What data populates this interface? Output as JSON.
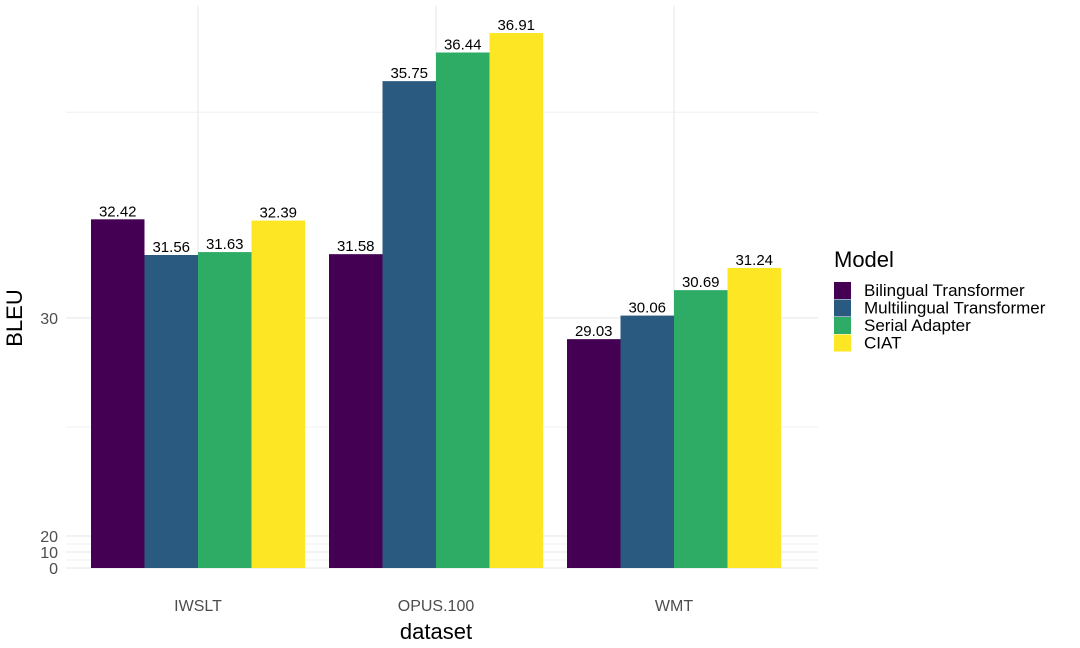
{
  "chart_data": {
    "type": "bar",
    "xlabel": "dataset",
    "ylabel": "BLEU",
    "categories": [
      "IWSLT",
      "OPUS.100",
      "WMT"
    ],
    "series": [
      {
        "name": "Bilingual Transformer",
        "color": "#440154",
        "values": [
          32.42,
          31.58,
          29.03
        ]
      },
      {
        "name": "Multilingual Transformer",
        "color": "#2b5a80",
        "values": [
          31.56,
          35.75,
          30.06
        ]
      },
      {
        "name": "Serial Adapter",
        "color": "#2eab65",
        "values": [
          31.63,
          36.44,
          30.69
        ]
      },
      {
        "name": "CIAT",
        "color": "#fde725",
        "values": [
          32.39,
          36.91,
          31.24
        ]
      }
    ],
    "value_labels": [
      [
        "32.42",
        "31.58",
        "29.03"
      ],
      [
        "31.56",
        "35.75",
        "30.06"
      ],
      [
        "31.63",
        "36.44",
        "30.69"
      ],
      [
        "32.39",
        "36.91",
        "31.24"
      ]
    ],
    "y_axis": {
      "scale": "sqrt-like (compressed near zero)",
      "ticks": [
        0,
        10,
        20,
        30
      ],
      "tick_labels": [
        "0",
        "10",
        "20",
        "30"
      ],
      "ylim": [
        0,
        37.5
      ]
    },
    "legend": {
      "title": "Model",
      "placement": "right"
    },
    "grid": true
  }
}
